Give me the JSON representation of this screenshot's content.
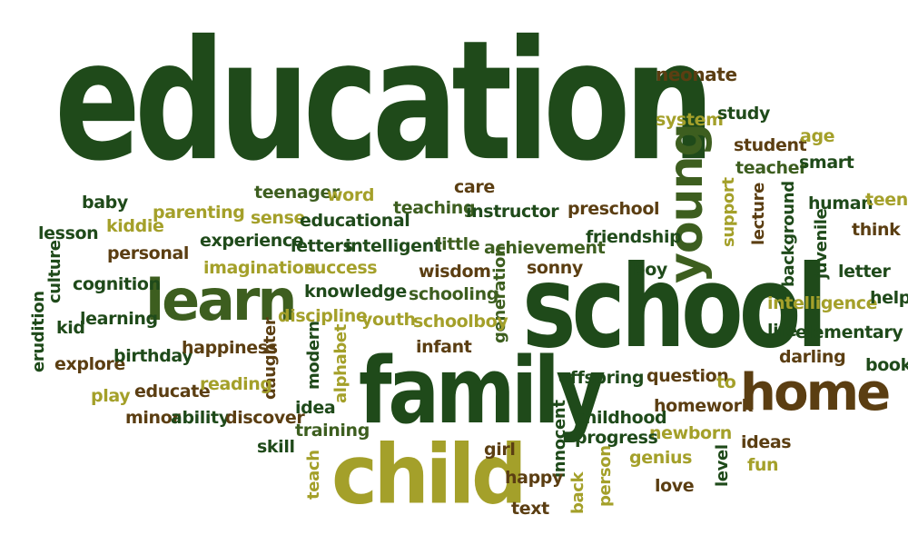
{
  "palette": {
    "dark_green": "#1f4a1a",
    "mid_green": "#3d5e1f",
    "olive": "#a4a02a",
    "brown": "#5b3e12",
    "background": "#ffffff"
  },
  "words": {
    "education": "education",
    "neonate": "neonate",
    "system": "system",
    "study": "study",
    "student": "student",
    "age": "age",
    "teacher": "teacher",
    "smart": "smart",
    "young": "young",
    "teenager": "teenager",
    "word": "word",
    "care": "care",
    "baby": "baby",
    "parenting": "parenting",
    "sense": "sense",
    "educational": "educational",
    "teaching": "teaching",
    "instructor": "instructor",
    "preschool": "preschool",
    "support": "support",
    "lecture": "lecture",
    "background": "background",
    "human": "human",
    "teen": "teen",
    "lesson": "lesson",
    "kiddie": "kiddie",
    "experience": "experience",
    "letters": "letters",
    "intelligent": "intelligent",
    "little": "little",
    "achievement": "achievement",
    "friendship": "friendship",
    "juvenile": "juvenile",
    "think": "think",
    "culture": "culture",
    "personal": "personal",
    "imagination": "imagination",
    "success": "success",
    "wisdom": "wisdom",
    "generation": "generation",
    "sonny": "sonny",
    "boy": "boy",
    "letter": "letter",
    "cognition": "cognition",
    "learn": "learn",
    "knowledge": "knowledge",
    "schooling": "schooling",
    "school": "school",
    "intelligence": "intelligence",
    "help": "help",
    "erudition": "erudition",
    "kid": "kid",
    "learning": "learning",
    "discipline": "discipline",
    "youth": "youth",
    "schoolboy": "schoolboy",
    "life": "life",
    "elementary": "elementary",
    "explore": "explore",
    "birthday": "birthday",
    "happiness": "happiness",
    "daughter": "daughter",
    "modern": "modern",
    "alphabet": "alphabet",
    "infant": "infant",
    "family": "family",
    "darling": "darling",
    "book": "book",
    "offspring": "offspring",
    "question": "question",
    "to": "to",
    "play": "play",
    "educate": "educate",
    "reading": "reading",
    "idea": "idea",
    "homework": "homework",
    "home": "home",
    "minor": "minor",
    "ability": "ability",
    "discover": "discover",
    "training": "training",
    "childhood": "childhood",
    "newborn": "newborn",
    "skill": "skill",
    "child": "child",
    "girl": "girl",
    "innocent": "innocent",
    "progress": "progress",
    "ideas": "ideas",
    "genius": "genius",
    "level": "level",
    "fun": "fun",
    "teach": "teach",
    "happy": "happy",
    "back": "back",
    "person": "person",
    "love": "love",
    "text": "text"
  }
}
